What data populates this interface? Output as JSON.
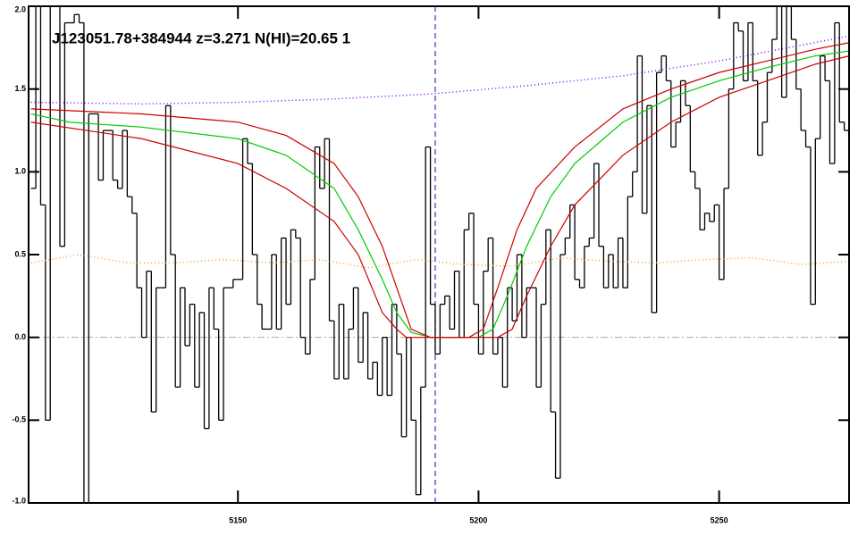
{
  "chart_data": {
    "type": "line",
    "title": "J123051.78+384944 z=3.271 N(HI)=20.65 1",
    "xlim": [
      5106.5,
      5277
    ],
    "ylim": [
      -1,
      2
    ],
    "xticks": [
      5150,
      5200,
      5250
    ],
    "yticks": [
      {
        "value": -1,
        "label": "-1.0"
      },
      {
        "value": -0.5,
        "label": "-0.5"
      },
      {
        "value": 0,
        "label": "0.0"
      },
      {
        "value": 0.5,
        "label": "0.5"
      },
      {
        "value": 1,
        "label": "1.0"
      },
      {
        "value": 1.5,
        "label": "1.5"
      },
      {
        "value": 2,
        "label": "2.0"
      }
    ],
    "zero_line": {
      "value": 0,
      "color": "#aaaaaa"
    },
    "marker_line": {
      "x": 5191,
      "color": "#3333cc"
    },
    "series": [
      {
        "style": "step",
        "color": "#000000",
        "x": [
          5107,
          5108,
          5109,
          5110,
          5111,
          5112,
          5113,
          5114,
          5115,
          5116,
          5117,
          5118,
          5119,
          5120,
          5121,
          5122,
          5123,
          5124,
          5125,
          5126,
          5127,
          5128,
          5129,
          5130,
          5131,
          5132,
          5133,
          5134,
          5135,
          5136,
          5137,
          5138,
          5139,
          5140,
          5141,
          5142,
          5143,
          5144,
          5145,
          5146,
          5147,
          5148,
          5149,
          5150,
          5151,
          5152,
          5153,
          5154,
          5155,
          5156,
          5157,
          5158,
          5159,
          5160,
          5161,
          5162,
          5163,
          5164,
          5165,
          5166,
          5167,
          5168,
          5169,
          5170,
          5171,
          5172,
          5173,
          5174,
          5175,
          5176,
          5177,
          5178,
          5179,
          5180,
          5181,
          5182,
          5183,
          5184,
          5185,
          5186,
          5187,
          5188,
          5189,
          5190,
          5191,
          5192,
          5193,
          5194,
          5195,
          5196,
          5197,
          5198,
          5199,
          5200,
          5201,
          5202,
          5203,
          5204,
          5205,
          5206,
          5207,
          5208,
          5209,
          5210,
          5211,
          5212,
          5213,
          5214,
          5215,
          5216,
          5217,
          5218,
          5219,
          5220,
          5221,
          5222,
          5223,
          5224,
          5225,
          5226,
          5227,
          5228,
          5229,
          5230,
          5231,
          5232,
          5233,
          5234,
          5235,
          5236,
          5237,
          5238,
          5239,
          5240,
          5241,
          5242,
          5243,
          5244,
          5245,
          5246,
          5247,
          5248,
          5249,
          5250,
          5251,
          5252,
          5253,
          5254,
          5255,
          5256,
          5257,
          5258,
          5259,
          5260,
          5261,
          5262,
          5263,
          5264,
          5265,
          5266,
          5267,
          5268,
          5269,
          5270,
          5271,
          5272,
          5273,
          5274,
          5275,
          5276
        ],
        "values": [
          0.9,
          2.0,
          0.8,
          -0.5,
          2.0,
          2.0,
          0.55,
          1.9,
          1.9,
          1.95,
          1.9,
          -1.0,
          1.35,
          1.35,
          0.95,
          1.25,
          1.25,
          0.95,
          0.9,
          1.25,
          0.85,
          0.75,
          0.3,
          0.0,
          0.4,
          -0.45,
          0.3,
          0.3,
          1.4,
          0.5,
          -0.3,
          0.3,
          -0.05,
          0.2,
          -0.3,
          0.15,
          -0.55,
          0.3,
          0.05,
          -0.5,
          0.3,
          0.3,
          0.35,
          0.35,
          1.2,
          1.05,
          0.5,
          0.2,
          0.05,
          0.05,
          0.5,
          0.05,
          0.6,
          0.2,
          0.65,
          0.6,
          0.0,
          -0.1,
          0.35,
          1.15,
          0.9,
          1.2,
          0.1,
          -0.25,
          0.2,
          -0.25,
          0.05,
          0.3,
          -0.15,
          0.15,
          -0.25,
          -0.15,
          -0.35,
          0.0,
          -0.35,
          0.2,
          -0.1,
          -0.6,
          0.0,
          -0.5,
          -0.95,
          -0.3,
          1.15,
          0.2,
          -0.1,
          0.2,
          0.25,
          0.05,
          0.4,
          0.0,
          0.65,
          0.75,
          0.2,
          -0.1,
          0.4,
          0.6,
          -0.1,
          0.0,
          -0.3,
          0.3,
          0.1,
          0.5,
          0.0,
          0.3,
          0.3,
          -0.3,
          0.2,
          0.65,
          -0.45,
          -0.85,
          0.5,
          0.6,
          0.8,
          0.35,
          0.3,
          0.55,
          0.6,
          1.05,
          0.55,
          0.3,
          0.5,
          0.3,
          0.6,
          0.3,
          0.85,
          1.0,
          1.7,
          0.75,
          1.4,
          0.15,
          1.6,
          1.7,
          1.55,
          1.15,
          1.3,
          1.55,
          1.4,
          1.0,
          0.9,
          0.65,
          0.75,
          0.7,
          0.8,
          0.35,
          0.9,
          1.5,
          1.9,
          1.85,
          1.55,
          1.9,
          1.55,
          1.1,
          1.3,
          1.6,
          1.8,
          2.0,
          1.45,
          2.0,
          1.8,
          1.5,
          1.25,
          1.15,
          0.2,
          1.2,
          1.7,
          1.55,
          1.05,
          1.9,
          1.3,
          1.25
        ]
      },
      {
        "style": "solid",
        "color": "#00cc00",
        "x": [
          5107,
          5115,
          5130,
          5150,
          5160,
          5170,
          5175,
          5180,
          5183,
          5186,
          5190,
          5200,
          5203,
          5206,
          5210,
          5215,
          5220,
          5230,
          5240,
          5250,
          5260,
          5270,
          5277
        ],
        "values": [
          1.35,
          1.3,
          1.27,
          1.2,
          1.1,
          0.9,
          0.65,
          0.35,
          0.15,
          0.03,
          0,
          0,
          0.05,
          0.25,
          0.55,
          0.85,
          1.05,
          1.3,
          1.45,
          1.55,
          1.63,
          1.7,
          1.73
        ]
      },
      {
        "style": "solid",
        "color": "#cc0000",
        "x": [
          5107,
          5130,
          5150,
          5160,
          5170,
          5175,
          5180,
          5183,
          5186,
          5190,
          5198,
          5201,
          5204,
          5208,
          5212,
          5220,
          5230,
          5240,
          5250,
          5260,
          5270,
          5277
        ],
        "values": [
          1.38,
          1.35,
          1.3,
          1.22,
          1.05,
          0.85,
          0.55,
          0.3,
          0.05,
          0,
          0,
          0.05,
          0.3,
          0.65,
          0.9,
          1.15,
          1.38,
          1.5,
          1.6,
          1.67,
          1.74,
          1.78
        ]
      },
      {
        "style": "solid",
        "color": "#cc0000",
        "x": [
          5107,
          5130,
          5150,
          5160,
          5170,
          5175,
          5180,
          5183,
          5185,
          5204,
          5207,
          5210,
          5215,
          5220,
          5230,
          5240,
          5250,
          5260,
          5270,
          5277
        ],
        "values": [
          1.3,
          1.2,
          1.05,
          0.9,
          0.7,
          0.5,
          0.15,
          0.05,
          0,
          0,
          0.05,
          0.25,
          0.55,
          0.8,
          1.1,
          1.3,
          1.45,
          1.55,
          1.65,
          1.7
        ]
      },
      {
        "style": "dotted",
        "color": "#8000ff",
        "x": [
          5107,
          5130,
          5150,
          5170,
          5190,
          5210,
          5230,
          5250,
          5277
        ],
        "values": [
          1.42,
          1.41,
          1.42,
          1.44,
          1.47,
          1.52,
          1.58,
          1.67,
          1.82
        ]
      },
      {
        "style": "dotted",
        "color": "#ff9933",
        "x": [
          5107,
          5117,
          5127,
          5137,
          5147,
          5157,
          5167,
          5177,
          5187,
          5197,
          5207,
          5217,
          5227,
          5237,
          5247,
          5257,
          5267,
          5277
        ],
        "values": [
          0.45,
          0.5,
          0.45,
          0.45,
          0.47,
          0.45,
          0.47,
          0.42,
          0.47,
          0.44,
          0.43,
          0.48,
          0.46,
          0.45,
          0.47,
          0.48,
          0.44,
          0.46
        ]
      }
    ]
  }
}
